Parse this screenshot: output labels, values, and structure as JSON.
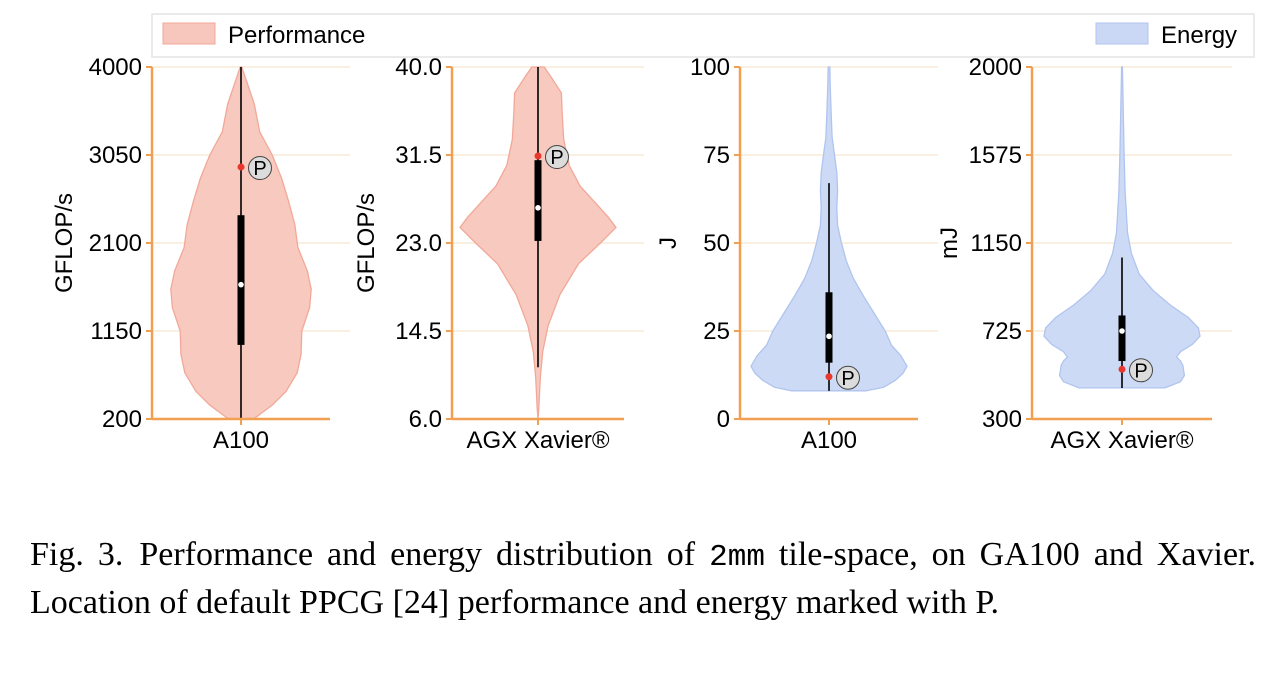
{
  "legend": {
    "placement": "top",
    "items": [
      {
        "label": "Performance",
        "color": "#f7c6bc"
      },
      {
        "label": "Energy",
        "color": "#cad8f6"
      }
    ]
  },
  "colors": {
    "axis": "#f0a050",
    "grid": "#f7e6cf",
    "performance_fill": "#f7c6bc",
    "performance_edge": "#f2a898",
    "energy_fill": "#cad8f6",
    "energy_edge": "#b0c4ee",
    "box": "#000000",
    "median": "#ffffff",
    "marker": "#e8382d",
    "p_circle": "#dcdcdc"
  },
  "chart_data": [
    {
      "type": "violin",
      "metric": "Performance",
      "category": "A100",
      "ylabel": "GFLOP/s",
      "ylim": [
        200,
        4000
      ],
      "yticks": [
        200,
        1150,
        2100,
        3050,
        4000
      ],
      "ytick_labels": [
        "200",
        "1150",
        "2100",
        "3050",
        "4000"
      ],
      "grid": true,
      "density": [
        [
          200,
          0.16
        ],
        [
          350,
          0.4
        ],
        [
          500,
          0.58
        ],
        [
          700,
          0.72
        ],
        [
          900,
          0.77
        ],
        [
          1150,
          0.78
        ],
        [
          1400,
          0.88
        ],
        [
          1600,
          0.9
        ],
        [
          1800,
          0.85
        ],
        [
          2050,
          0.73
        ],
        [
          2300,
          0.69
        ],
        [
          2550,
          0.61
        ],
        [
          2800,
          0.52
        ],
        [
          3050,
          0.4
        ],
        [
          3300,
          0.24
        ],
        [
          3600,
          0.17
        ],
        [
          3850,
          0.07
        ],
        [
          4000,
          0.01
        ]
      ],
      "whisker": [
        200,
        4000
      ],
      "box": [
        1000,
        2400
      ],
      "median": 1650,
      "default_ppcg": {
        "value": 2920,
        "label": "P"
      }
    },
    {
      "type": "violin",
      "metric": "Performance",
      "category": "AGX Xavier®",
      "ylabel": "GFLOP/s",
      "ylim": [
        6.0,
        40.0
      ],
      "yticks": [
        6.0,
        14.5,
        23.0,
        31.5,
        40.0
      ],
      "ytick_labels": [
        "6.0",
        "14.5",
        "23.0",
        "31.5",
        "40.0"
      ],
      "grid": true,
      "density": [
        [
          6.0,
          0.0
        ],
        [
          7.0,
          0.01
        ],
        [
          10.0,
          0.03
        ],
        [
          12.5,
          0.06
        ],
        [
          15.0,
          0.13
        ],
        [
          18.0,
          0.28
        ],
        [
          21.0,
          0.52
        ],
        [
          23.0,
          0.8
        ],
        [
          24.5,
          1.0
        ],
        [
          25.5,
          0.9
        ],
        [
          27.0,
          0.72
        ],
        [
          28.5,
          0.54
        ],
        [
          30.5,
          0.4
        ],
        [
          33.0,
          0.33
        ],
        [
          35.5,
          0.31
        ],
        [
          37.5,
          0.3
        ],
        [
          39.0,
          0.17
        ],
        [
          40.0,
          0.08
        ]
      ],
      "whisker": [
        11.0,
        40.0
      ],
      "box": [
        23.2,
        31.0
      ],
      "median": 26.4,
      "default_ppcg": {
        "value": 31.4,
        "label": "P"
      }
    },
    {
      "type": "violin",
      "metric": "Energy",
      "category": "A100",
      "ylabel": "J",
      "ylim": [
        0,
        100
      ],
      "yticks": [
        0,
        25,
        50,
        75,
        100
      ],
      "ytick_labels": [
        "0",
        "25",
        "50",
        "75",
        "100"
      ],
      "grid": true,
      "density": [
        [
          8,
          0.48
        ],
        [
          9,
          0.7
        ],
        [
          11,
          0.85
        ],
        [
          13,
          0.95
        ],
        [
          15,
          1.0
        ],
        [
          18,
          0.92
        ],
        [
          21,
          0.8
        ],
        [
          25,
          0.72
        ],
        [
          30,
          0.58
        ],
        [
          35,
          0.44
        ],
        [
          40,
          0.31
        ],
        [
          45,
          0.22
        ],
        [
          50,
          0.16
        ],
        [
          55,
          0.11
        ],
        [
          60,
          0.1
        ],
        [
          65,
          0.11
        ],
        [
          70,
          0.1
        ],
        [
          75,
          0.07
        ],
        [
          80,
          0.04
        ],
        [
          88,
          0.025
        ],
        [
          95,
          0.015
        ],
        [
          100,
          0.01
        ]
      ],
      "whisker": [
        8,
        67
      ],
      "box": [
        16,
        36
      ],
      "median": 23.5,
      "default_ppcg": {
        "value": 12,
        "label": "P"
      }
    },
    {
      "type": "violin",
      "metric": "Energy",
      "category": "AGX Xavier®",
      "ylabel": "mJ",
      "ylim": [
        300,
        2000
      ],
      "yticks": [
        300,
        725,
        1150,
        1575,
        2000
      ],
      "ytick_labels": [
        "300",
        "725",
        "1150",
        "1575",
        "2000"
      ],
      "grid": true,
      "density": [
        [
          450,
          0.55
        ],
        [
          480,
          0.75
        ],
        [
          510,
          0.8
        ],
        [
          560,
          0.78
        ],
        [
          580,
          0.75
        ],
        [
          600,
          0.7
        ],
        [
          625,
          0.75
        ],
        [
          660,
          0.9
        ],
        [
          700,
          1.0
        ],
        [
          740,
          0.98
        ],
        [
          790,
          0.85
        ],
        [
          850,
          0.62
        ],
        [
          920,
          0.4
        ],
        [
          1000,
          0.22
        ],
        [
          1100,
          0.12
        ],
        [
          1200,
          0.07
        ],
        [
          1400,
          0.04
        ],
        [
          1600,
          0.025
        ],
        [
          1800,
          0.015
        ],
        [
          2000,
          0.005
        ]
      ],
      "whisker": [
        450,
        1080
      ],
      "box": [
        580,
        800
      ],
      "median": 725,
      "default_ppcg": {
        "value": 540,
        "label": "P"
      }
    }
  ],
  "caption": {
    "label": "Fig. 3.",
    "text_before": "Performance and energy distribution of ",
    "code": "2mm",
    "text_after": " tile-space, on GA100 and Xavier. Location of default PPCG [24] performance and energy marked with P."
  }
}
